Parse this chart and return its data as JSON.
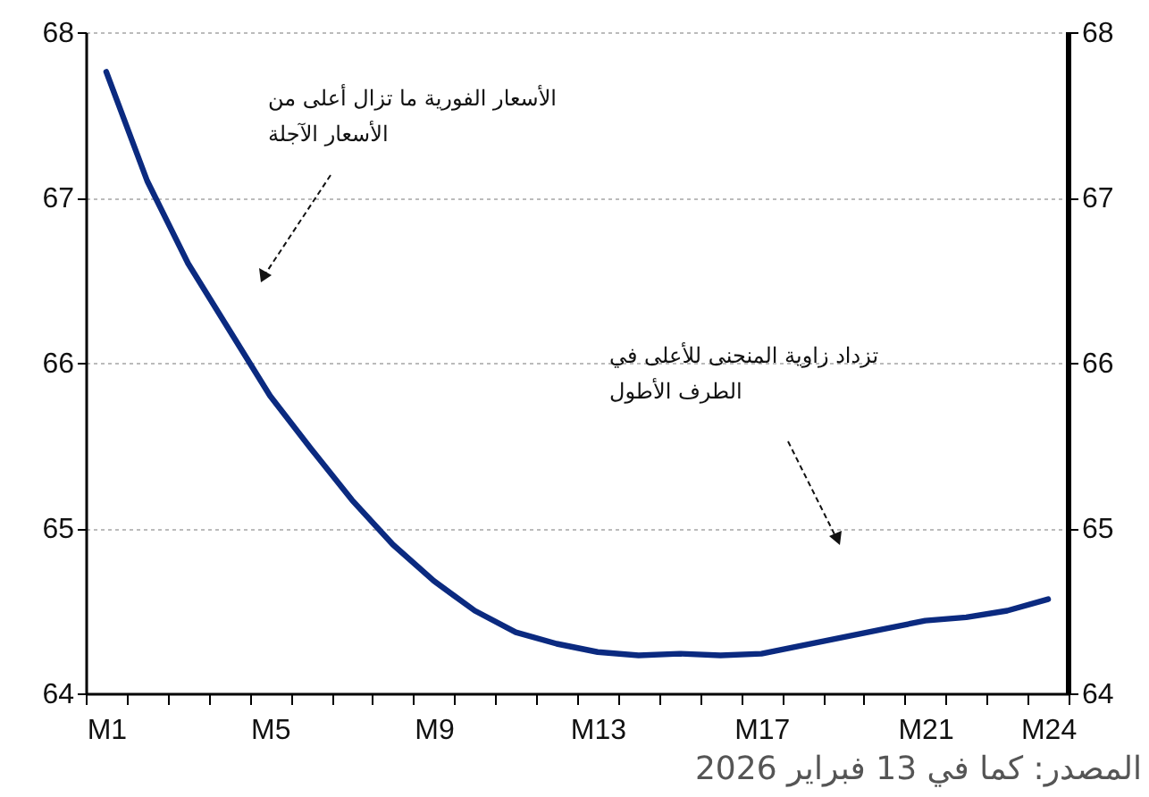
{
  "chart_data": {
    "type": "line",
    "categories": [
      "M1",
      null,
      null,
      null,
      "M5",
      null,
      null,
      null,
      "M9",
      null,
      null,
      null,
      "M13",
      null,
      null,
      null,
      "M17",
      null,
      null,
      null,
      "M21",
      null,
      null,
      "M24"
    ],
    "series": [
      {
        "color": "#0b2a80",
        "values": [
          67.76,
          67.1,
          66.6,
          66.2,
          65.8,
          65.48,
          65.17,
          64.9,
          64.68,
          64.5,
          64.37,
          64.3,
          64.25,
          64.23,
          64.24,
          64.23,
          64.24,
          64.29,
          64.34,
          64.39,
          64.44,
          64.46,
          64.5,
          64.57
        ]
      }
    ],
    "ylim": [
      64,
      68
    ],
    "yticks": [
      64,
      65,
      66,
      67,
      68
    ],
    "y2lim": [
      64,
      68
    ],
    "y2ticks": [
      64,
      65,
      66,
      67,
      68
    ],
    "grid": "y",
    "marker": "none",
    "line_style": "solid",
    "annotations": [
      "الأسعار الفورية ما تزال أعلى من\nالأسعار الآجلة",
      "تزداد زاوية المنحنى للأعلى في\nالطرف الأطول",
      "المصدر: كما في 13 فبراير 2026"
    ]
  }
}
